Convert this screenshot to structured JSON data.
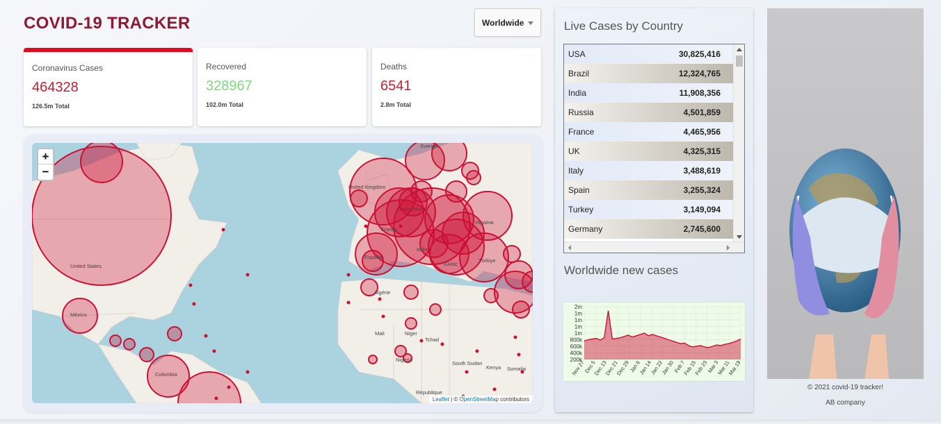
{
  "header": {
    "title": "COVID-19 TRACKER"
  },
  "country_select": {
    "selected": "Worldwide"
  },
  "stats": [
    {
      "title": "Coronavirus Cases",
      "value": "464328",
      "total": "126.5m Total",
      "color": "#c0213a"
    },
    {
      "title": "Recovered",
      "value": "328967",
      "total": "102.0m Total",
      "color": "#7dd87d"
    },
    {
      "title": "Deaths",
      "value": "6541",
      "total": "2.8m Total",
      "color": "#c0213a"
    }
  ],
  "map": {
    "zoom_in": "+",
    "zoom_out": "−",
    "labels": [
      "United States",
      "México",
      "Colombia",
      "United Kingdom",
      "Deutschland",
      "France",
      "España",
      "Italia",
      "Ελλάς",
      "Türkiye",
      "Україна",
      "Sverige",
      "Mali",
      "Niger",
      "Tchad",
      "Nigeria",
      "South Sudan",
      "Algérie",
      "Kenya",
      "Somalia",
      "République"
    ],
    "attribution": {
      "leaflet": "Leaflet",
      "sep": " | © ",
      "osm": "OpenStreetMap",
      "suffix": " contributors"
    },
    "circle_color": "#cc1034"
  },
  "side": {
    "table_title": "Live Cases by Country",
    "table": [
      {
        "country": "USA",
        "cases": "30,825,416"
      },
      {
        "country": "Brazil",
        "cases": "12,324,765"
      },
      {
        "country": "India",
        "cases": "11,908,356"
      },
      {
        "country": "Russia",
        "cases": "4,501,859"
      },
      {
        "country": "France",
        "cases": "4,465,956"
      },
      {
        "country": "UK",
        "cases": "4,325,315"
      },
      {
        "country": "Italy",
        "cases": "3,488,619"
      },
      {
        "country": "Spain",
        "cases": "3,255,324"
      },
      {
        "country": "Turkey",
        "cases": "3,149,094"
      },
      {
        "country": "Germany",
        "cases": "2,745,600"
      }
    ],
    "chart_title": "Worldwide new cases"
  },
  "chart_data": {
    "type": "area",
    "title": "",
    "xlabel": "",
    "ylabel": "",
    "x_ticks": [
      "Nov 27",
      "Dec 5",
      "Dec 13",
      "Dec 21",
      "Dec 29",
      "Jan 6",
      "Jan 14",
      "Jan 22",
      "Jan 30",
      "Feb 7",
      "Feb 15",
      "Feb 23",
      "Mar 3",
      "Mar 11",
      "Mar 19"
    ],
    "y_ticks": [
      "2m",
      "1m",
      "1m",
      "1m",
      "1m",
      "800k",
      "600k",
      "400k",
      "200k"
    ],
    "ylim": [
      0,
      1600000
    ],
    "grid": true,
    "series": [
      {
        "values": [
          560000,
          600000,
          620000,
          640000,
          590000,
          660000,
          1480000,
          620000,
          640000,
          660000,
          700000,
          740000,
          680000,
          720000,
          760000,
          800000,
          720000,
          760000,
          720000,
          680000,
          640000,
          600000,
          560000,
          520000,
          480000,
          500000,
          420000,
          380000,
          400000,
          420000,
          380000,
          360000,
          400000,
          440000,
          420000,
          460000,
          480000,
          520000,
          560000,
          620000
        ]
      }
    ],
    "line_color": "#cc1034"
  },
  "footer": {
    "copyright": "© 2021 covid-19 tracker!",
    "company": "AB company"
  }
}
